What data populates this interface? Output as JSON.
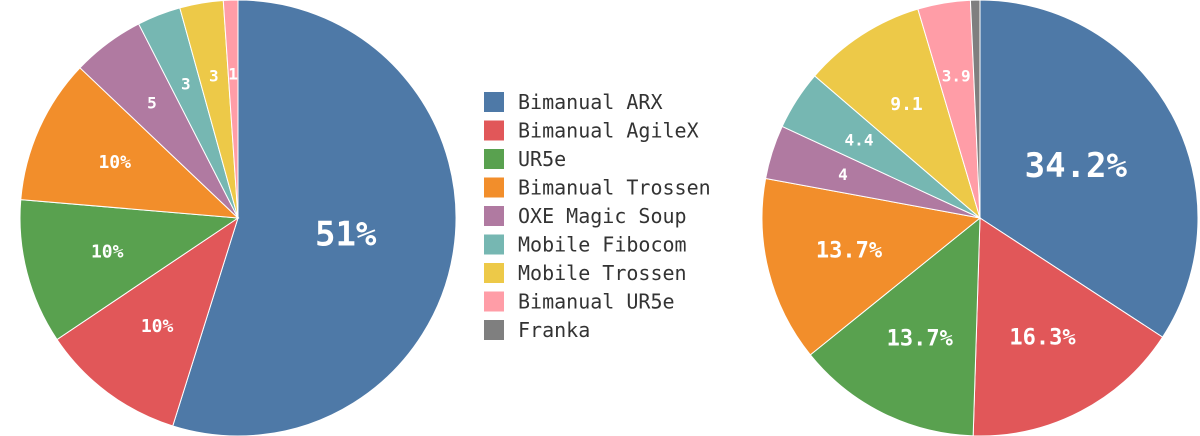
{
  "chart_data": [
    {
      "type": "pie",
      "categories": [
        "Bimanual ARX",
        "Bimanual AgileX",
        "UR5e",
        "Bimanual Trossen",
        "OXE Magic Soup",
        "Mobile Fibocom",
        "Mobile Trossen",
        "Bimanual UR5e"
      ],
      "values": [
        51,
        10,
        10,
        10,
        5,
        3,
        3,
        1
      ],
      "labels": [
        "51%",
        "10%",
        "10%",
        "10%",
        "5",
        "3",
        "3",
        "1"
      ]
    },
    {
      "type": "pie",
      "categories": [
        "Bimanual ARX",
        "Bimanual AgileX",
        "UR5e",
        "Bimanual Trossen",
        "OXE Magic Soup",
        "Mobile Fibocom",
        "Mobile Trossen",
        "Bimanual UR5e",
        "Franka"
      ],
      "values": [
        34.2,
        16.3,
        13.7,
        13.7,
        4.0,
        4.4,
        9.1,
        3.9,
        0.7
      ],
      "labels": [
        "34.2%",
        "16.3%",
        "13.7%",
        "13.7%",
        "4",
        "4.4",
        "9.1",
        "3.9",
        ""
      ]
    }
  ],
  "legend": [
    {
      "label": "Bimanual ARX",
      "color": "#4e79a7"
    },
    {
      "label": "Bimanual AgileX",
      "color": "#e15759"
    },
    {
      "label": "UR5e",
      "color": "#59a14f"
    },
    {
      "label": "Bimanual Trossen",
      "color": "#f28e2b"
    },
    {
      "label": "OXE Magic Soup",
      "color": "#b07aa1"
    },
    {
      "label": "Mobile Fibocom",
      "color": "#76b7b2"
    },
    {
      "label": "Mobile Trossen",
      "color": "#edc948"
    },
    {
      "label": "Bimanual UR5e",
      "color": "#ff9da7"
    },
    {
      "label": "Franka",
      "color": "#7f7f7f"
    }
  ]
}
